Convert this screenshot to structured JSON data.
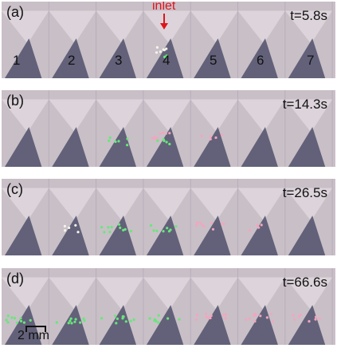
{
  "panels": [
    {
      "label": "(a)",
      "time": "t=5.8s"
    },
    {
      "label": "(b)",
      "time": "t=14.3s"
    },
    {
      "label": "(c)",
      "time": "t=26.5s"
    },
    {
      "label": "(d)",
      "time": "t=66.6s"
    }
  ],
  "annotations": {
    "inlet": "inlet",
    "columns": [
      "1",
      "2",
      "3",
      "4",
      "5",
      "6",
      "7"
    ],
    "scale_bar": "2 mm"
  },
  "colors": {
    "background": "#c9bfc7",
    "chamber": "#575770",
    "particle_green": "#66e87a",
    "particle_pink": "#f2a6be",
    "particle_white": "#f4f4ea",
    "inlet_marker": "#e0141c"
  }
}
